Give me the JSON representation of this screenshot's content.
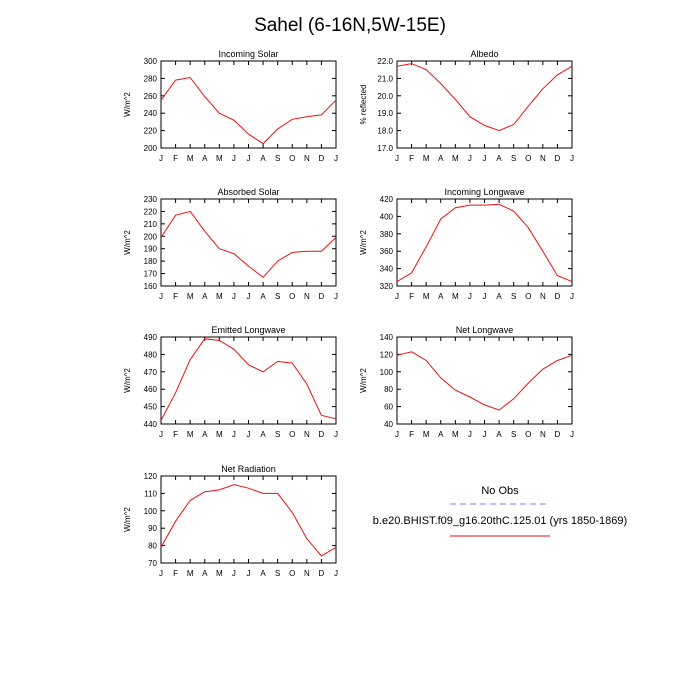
{
  "figure_title": "Sahel (6-16N,5W-15E)",
  "legend": {
    "obs_label": "No Obs",
    "obs_color": "#7b7bff",
    "model_label": "b.e20.BHIST.f09_g16.20thC.125.01 (yrs 1850-1869)",
    "model_color": "#ee1111"
  },
  "chart_data": [
    {
      "type": "line",
      "title": "Incoming Solar",
      "ylabel": "W/m^2",
      "categories": [
        "J",
        "F",
        "M",
        "A",
        "M",
        "J",
        "J",
        "A",
        "S",
        "O",
        "N",
        "D",
        "J"
      ],
      "ylim": [
        200,
        300
      ],
      "yticks": [
        "200",
        "220",
        "240",
        "260",
        "280",
        "300"
      ],
      "series": [
        {
          "values": [
            255,
            278,
            281,
            259,
            240,
            232,
            216,
            205,
            222,
            233,
            236,
            238,
            255
          ]
        }
      ]
    },
    {
      "type": "line",
      "title": "Albedo",
      "ylabel": "% reflected",
      "categories": [
        "J",
        "F",
        "M",
        "A",
        "M",
        "J",
        "J",
        "A",
        "S",
        "O",
        "N",
        "D",
        "J"
      ],
      "ylim": [
        17,
        22
      ],
      "yticks": [
        "17.0",
        "18.0",
        "19.0",
        "20.0",
        "21.0",
        "22.0"
      ],
      "series": [
        {
          "values": [
            21.7,
            21.85,
            21.5,
            20.7,
            19.8,
            18.8,
            18.3,
            18.0,
            18.35,
            19.4,
            20.4,
            21.2,
            21.7
          ]
        }
      ]
    },
    {
      "type": "line",
      "title": "Absorbed Solar",
      "ylabel": "W/m^2",
      "categories": [
        "J",
        "F",
        "M",
        "A",
        "M",
        "J",
        "J",
        "A",
        "S",
        "O",
        "N",
        "D",
        "J"
      ],
      "ylim": [
        160,
        230
      ],
      "yticks": [
        "160",
        "170",
        "180",
        "190",
        "200",
        "210",
        "220",
        "230"
      ],
      "series": [
        {
          "values": [
            199,
            217,
            220,
            204,
            190,
            186,
            176,
            167,
            180,
            187,
            188,
            188,
            199
          ]
        }
      ]
    },
    {
      "type": "line",
      "title": "Incoming Longwave",
      "ylabel": "W/m^2",
      "categories": [
        "J",
        "F",
        "M",
        "A",
        "M",
        "J",
        "J",
        "A",
        "S",
        "O",
        "N",
        "D",
        "J"
      ],
      "ylim": [
        320,
        420
      ],
      "yticks": [
        "320",
        "340",
        "360",
        "380",
        "400",
        "420"
      ],
      "series": [
        {
          "values": [
            325,
            335,
            365,
            397,
            410,
            413,
            413,
            414,
            406,
            387,
            360,
            332,
            325
          ]
        }
      ]
    },
    {
      "type": "line",
      "title": "Emitted Longwave",
      "ylabel": "W/m^2",
      "categories": [
        "J",
        "F",
        "M",
        "A",
        "M",
        "J",
        "J",
        "A",
        "S",
        "O",
        "N",
        "D",
        "J"
      ],
      "ylim": [
        440,
        490
      ],
      "yticks": [
        "440",
        "450",
        "460",
        "470",
        "480",
        "490"
      ],
      "series": [
        {
          "values": [
            442,
            458,
            477,
            489,
            488,
            483,
            474,
            470,
            476,
            475,
            463,
            445,
            443
          ]
        }
      ]
    },
    {
      "type": "line",
      "title": "Net Longwave",
      "ylabel": "W/m^2",
      "categories": [
        "J",
        "F",
        "M",
        "A",
        "M",
        "J",
        "J",
        "A",
        "S",
        "O",
        "N",
        "D",
        "J"
      ],
      "ylim": [
        40,
        140
      ],
      "yticks": [
        "40",
        "60",
        "80",
        "100",
        "120",
        "140"
      ],
      "series": [
        {
          "values": [
            119,
            123,
            113,
            93,
            79,
            71,
            62,
            56,
            69,
            87,
            103,
            113,
            119
          ]
        }
      ]
    },
    {
      "type": "line",
      "title": "Net Radiation",
      "ylabel": "W/m^2",
      "categories": [
        "J",
        "F",
        "M",
        "A",
        "M",
        "J",
        "J",
        "A",
        "S",
        "O",
        "N",
        "D",
        "J"
      ],
      "ylim": [
        70,
        120
      ],
      "yticks": [
        "70",
        "80",
        "90",
        "100",
        "110",
        "120"
      ],
      "series": [
        {
          "values": [
            79,
            94,
            106,
            111,
            112,
            115,
            113,
            110,
            110,
            99,
            84,
            74,
            79
          ]
        }
      ]
    }
  ]
}
